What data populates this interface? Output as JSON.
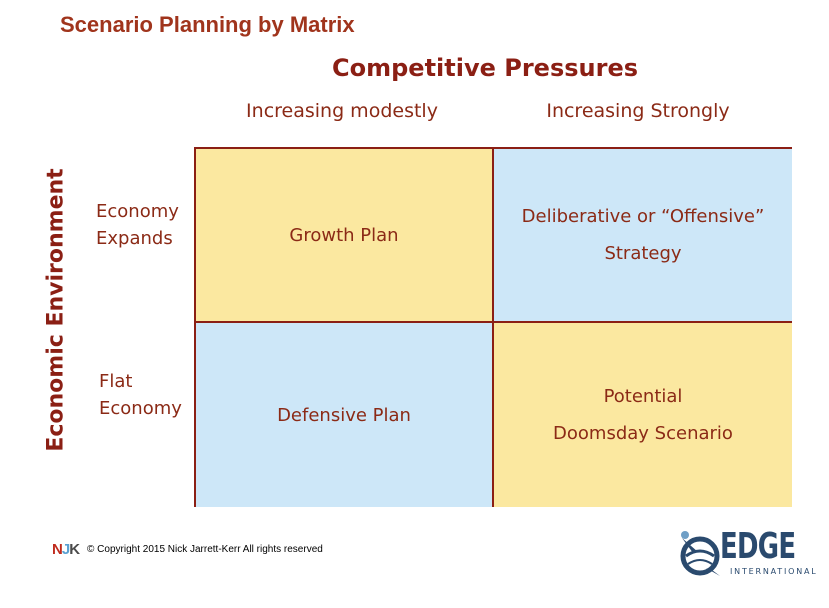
{
  "title": "Scenario Planning by Matrix",
  "x_axis": {
    "title": "Competitive Pressures",
    "columns": [
      "Increasing modestly",
      "Increasing Strongly"
    ]
  },
  "y_axis": {
    "title": "Economic Environment",
    "rows": [
      {
        "line1": "Economy",
        "line2": "Expands"
      },
      {
        "line1": "Flat",
        "line2": "Economy"
      }
    ]
  },
  "cells": {
    "top_left": "Growth Plan",
    "top_right": "Deliberative or “Offensive”\nStrategy",
    "bottom_left": "Defensive Plan",
    "bottom_right": "Potential\nDoomsday Scenario"
  },
  "colors": {
    "yellow": "#fbe8a0",
    "blue": "#cde7f8",
    "border": "#8b1f14",
    "text": "#8b2a16",
    "title": "#a0341c"
  },
  "footer": {
    "logo_n": "N",
    "logo_j": "J",
    "logo_k": "K",
    "copyright": "© Copyright 2015 Nick Jarrett-Kerr All rights reserved"
  },
  "brand_logo": {
    "name": "EDGE",
    "subtitle": "INTERNATIONAL",
    "icon": "globe-arrow-icon"
  }
}
